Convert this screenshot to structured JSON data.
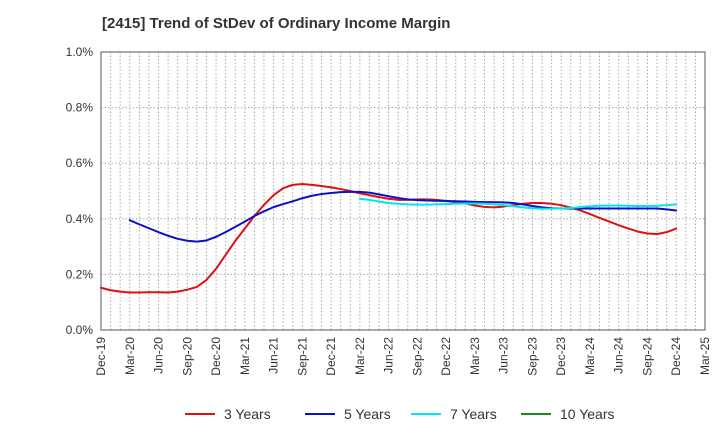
{
  "title": "[2415]  Trend of StDev of Ordinary Income Margin",
  "chart_data": {
    "type": "line",
    "title": "[2415]  Trend of StDev of Ordinary Income Margin",
    "xlabel": "",
    "ylabel": "",
    "ylim": [
      0,
      1.0
    ],
    "y_ticks": [
      "0.0%",
      "0.2%",
      "0.4%",
      "0.6%",
      "0.8%",
      "1.0%"
    ],
    "y_tick_values": [
      0,
      0.2,
      0.4,
      0.6,
      0.8,
      1.0
    ],
    "x_start": "Dec-19",
    "x_ticks": [
      "Dec-19",
      "Mar-20",
      "Jun-20",
      "Sep-20",
      "Dec-20",
      "Mar-21",
      "Jun-21",
      "Sep-21",
      "Dec-21",
      "Mar-22",
      "Jun-22",
      "Sep-22",
      "Dec-22",
      "Mar-23",
      "Jun-23",
      "Sep-23",
      "Dec-23",
      "Mar-24",
      "Jun-24",
      "Sep-24",
      "Dec-24",
      "Mar-25"
    ],
    "grid": true,
    "legend_position": "bottom",
    "series": [
      {
        "name": "3 Years",
        "color": "#dd1111",
        "points": [
          [
            "Dec-19",
            0.152
          ],
          [
            "Jan-20",
            0.143
          ],
          [
            "Feb-20",
            0.138
          ],
          [
            "Mar-20",
            0.135
          ],
          [
            "Apr-20",
            0.135
          ],
          [
            "May-20",
            0.136
          ],
          [
            "Jun-20",
            0.136
          ],
          [
            "Jul-20",
            0.135
          ],
          [
            "Aug-20",
            0.138
          ],
          [
            "Sep-20",
            0.145
          ],
          [
            "Oct-20",
            0.155
          ],
          [
            "Nov-20",
            0.18
          ],
          [
            "Dec-20",
            0.22
          ],
          [
            "Jan-21",
            0.27
          ],
          [
            "Feb-21",
            0.32
          ],
          [
            "Mar-21",
            0.365
          ],
          [
            "Apr-21",
            0.41
          ],
          [
            "May-21",
            0.45
          ],
          [
            "Jun-21",
            0.485
          ],
          [
            "Jul-21",
            0.51
          ],
          [
            "Aug-21",
            0.522
          ],
          [
            "Sep-21",
            0.525
          ],
          [
            "Oct-21",
            0.522
          ],
          [
            "Nov-21",
            0.518
          ],
          [
            "Dec-21",
            0.513
          ],
          [
            "Jan-22",
            0.507
          ],
          [
            "Feb-22",
            0.5
          ],
          [
            "Mar-22",
            0.492
          ],
          [
            "Apr-22",
            0.485
          ],
          [
            "May-22",
            0.478
          ],
          [
            "Jun-22",
            0.472
          ],
          [
            "Jul-22",
            0.468
          ],
          [
            "Aug-22",
            0.468
          ],
          [
            "Sep-22",
            0.47
          ],
          [
            "Oct-22",
            0.47
          ],
          [
            "Nov-22",
            0.468
          ],
          [
            "Dec-22",
            0.464
          ],
          [
            "Jan-23",
            0.46
          ],
          [
            "Feb-23",
            0.455
          ],
          [
            "Mar-23",
            0.448
          ],
          [
            "Apr-23",
            0.443
          ],
          [
            "May-23",
            0.441
          ],
          [
            "Jun-23",
            0.444
          ],
          [
            "Jul-23",
            0.449
          ],
          [
            "Aug-23",
            0.454
          ],
          [
            "Sep-23",
            0.457
          ],
          [
            "Oct-23",
            0.457
          ],
          [
            "Nov-23",
            0.454
          ],
          [
            "Dec-23",
            0.449
          ],
          [
            "Jan-24",
            0.44
          ],
          [
            "Feb-24",
            0.43
          ],
          [
            "Mar-24",
            0.417
          ],
          [
            "Apr-24",
            0.403
          ],
          [
            "May-24",
            0.39
          ],
          [
            "Jun-24",
            0.377
          ],
          [
            "Jul-24",
            0.365
          ],
          [
            "Aug-24",
            0.354
          ],
          [
            "Sep-24",
            0.347
          ],
          [
            "Oct-24",
            0.345
          ],
          [
            "Nov-24",
            0.352
          ],
          [
            "Dec-24",
            0.365
          ]
        ]
      },
      {
        "name": "5 Years",
        "color": "#0b11c8",
        "points": [
          [
            "Mar-20",
            0.395
          ],
          [
            "Apr-20",
            0.38
          ],
          [
            "May-20",
            0.366
          ],
          [
            "Jun-20",
            0.352
          ],
          [
            "Jul-20",
            0.339
          ],
          [
            "Aug-20",
            0.328
          ],
          [
            "Sep-20",
            0.321
          ],
          [
            "Oct-20",
            0.318
          ],
          [
            "Nov-20",
            0.322
          ],
          [
            "Dec-20",
            0.335
          ],
          [
            "Jan-21",
            0.352
          ],
          [
            "Feb-21",
            0.371
          ],
          [
            "Mar-21",
            0.39
          ],
          [
            "Apr-21",
            0.41
          ],
          [
            "May-21",
            0.427
          ],
          [
            "Jun-21",
            0.442
          ],
          [
            "Jul-21",
            0.453
          ],
          [
            "Aug-21",
            0.463
          ],
          [
            "Sep-21",
            0.474
          ],
          [
            "Oct-21",
            0.483
          ],
          [
            "Nov-21",
            0.489
          ],
          [
            "Dec-21",
            0.493
          ],
          [
            "Jan-22",
            0.496
          ],
          [
            "Feb-22",
            0.497
          ],
          [
            "Mar-22",
            0.497
          ],
          [
            "Apr-22",
            0.494
          ],
          [
            "May-22",
            0.488
          ],
          [
            "Jun-22",
            0.481
          ],
          [
            "Jul-22",
            0.475
          ],
          [
            "Aug-22",
            0.47
          ],
          [
            "Sep-22",
            0.467
          ],
          [
            "Oct-22",
            0.466
          ],
          [
            "Nov-22",
            0.465
          ],
          [
            "Dec-22",
            0.464
          ],
          [
            "Jan-23",
            0.463
          ],
          [
            "Feb-23",
            0.462
          ],
          [
            "Mar-23",
            0.461
          ],
          [
            "Apr-23",
            0.46
          ],
          [
            "May-23",
            0.46
          ],
          [
            "Jun-23",
            0.459
          ],
          [
            "Jul-23",
            0.457
          ],
          [
            "Aug-23",
            0.452
          ],
          [
            "Sep-23",
            0.446
          ],
          [
            "Oct-23",
            0.441
          ],
          [
            "Nov-23",
            0.438
          ],
          [
            "Dec-23",
            0.437
          ],
          [
            "Jan-24",
            0.437
          ],
          [
            "Feb-24",
            0.437
          ],
          [
            "Mar-24",
            0.437
          ],
          [
            "Apr-24",
            0.437
          ],
          [
            "May-24",
            0.437
          ],
          [
            "Jun-24",
            0.437
          ],
          [
            "Jul-24",
            0.437
          ],
          [
            "Aug-24",
            0.437
          ],
          [
            "Sep-24",
            0.437
          ],
          [
            "Oct-24",
            0.437
          ],
          [
            "Nov-24",
            0.434
          ],
          [
            "Dec-24",
            0.43
          ]
        ]
      },
      {
        "name": "7 Years",
        "color": "#00e5ee",
        "points": [
          [
            "Mar-22",
            0.472
          ],
          [
            "Apr-22",
            0.468
          ],
          [
            "May-22",
            0.462
          ],
          [
            "Jun-22",
            0.457
          ],
          [
            "Jul-22",
            0.454
          ],
          [
            "Aug-22",
            0.452
          ],
          [
            "Sep-22",
            0.451
          ],
          [
            "Oct-22",
            0.451
          ],
          [
            "Nov-22",
            0.452
          ],
          [
            "Dec-22",
            0.453
          ],
          [
            "Jan-23",
            0.454
          ],
          [
            "Feb-23",
            0.455
          ],
          [
            "Mar-23",
            0.455
          ],
          [
            "Apr-23",
            0.454
          ],
          [
            "May-23",
            0.452
          ],
          [
            "Jun-23",
            0.449
          ],
          [
            "Jul-23",
            0.445
          ],
          [
            "Aug-23",
            0.441
          ],
          [
            "Sep-23",
            0.438
          ],
          [
            "Oct-23",
            0.436
          ],
          [
            "Nov-23",
            0.436
          ],
          [
            "Dec-23",
            0.437
          ],
          [
            "Jan-24",
            0.439
          ],
          [
            "Feb-24",
            0.442
          ],
          [
            "Mar-24",
            0.445
          ],
          [
            "Apr-24",
            0.447
          ],
          [
            "May-24",
            0.448
          ],
          [
            "Jun-24",
            0.448
          ],
          [
            "Jul-24",
            0.447
          ],
          [
            "Aug-24",
            0.446
          ],
          [
            "Sep-24",
            0.446
          ],
          [
            "Oct-24",
            0.447
          ],
          [
            "Nov-24",
            0.449
          ],
          [
            "Dec-24",
            0.452
          ]
        ]
      },
      {
        "name": "10 Years",
        "color": "#1a8a1a",
        "points": []
      }
    ]
  }
}
